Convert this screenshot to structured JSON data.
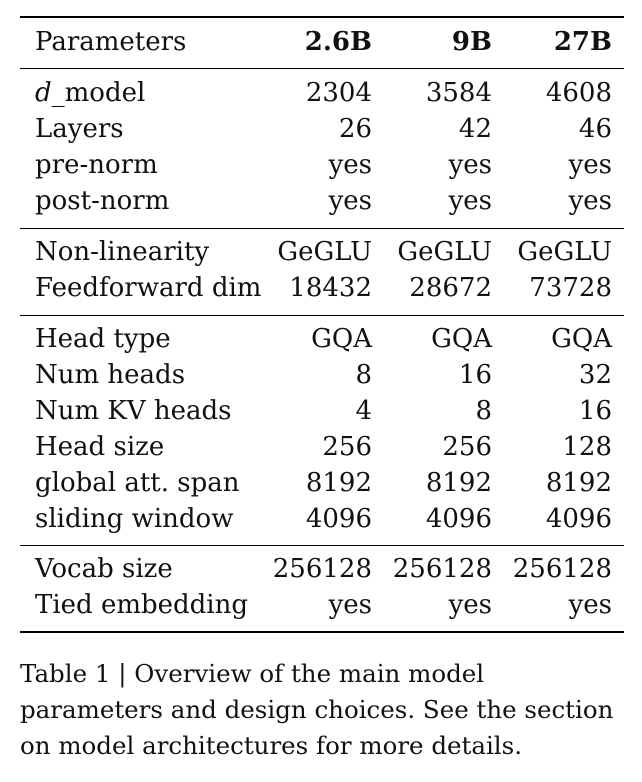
{
  "table": {
    "header": {
      "label": "Parameters",
      "cols": [
        "2.6B",
        "9B",
        "27B"
      ]
    },
    "groups": [
      [
        {
          "label_italic": "d",
          "label_rest": "_model",
          "values": [
            "2304",
            "3584",
            "4608"
          ]
        },
        {
          "label": "Layers",
          "values": [
            "26",
            "42",
            "46"
          ]
        },
        {
          "label": "pre-norm",
          "values": [
            "yes",
            "yes",
            "yes"
          ]
        },
        {
          "label": "post-norm",
          "values": [
            "yes",
            "yes",
            "yes"
          ]
        }
      ],
      [
        {
          "label": "Non-linearity",
          "values": [
            "GeGLU",
            "GeGLU",
            "GeGLU"
          ]
        },
        {
          "label": "Feedforward dim",
          "values": [
            "18432",
            "28672",
            "73728"
          ]
        }
      ],
      [
        {
          "label": "Head type",
          "values": [
            "GQA",
            "GQA",
            "GQA"
          ]
        },
        {
          "label": "Num heads",
          "values": [
            "8",
            "16",
            "32"
          ]
        },
        {
          "label": "Num KV heads",
          "values": [
            "4",
            "8",
            "16"
          ]
        },
        {
          "label": "Head size",
          "values": [
            "256",
            "256",
            "128"
          ]
        },
        {
          "label": "global att. span",
          "values": [
            "8192",
            "8192",
            "8192"
          ]
        },
        {
          "label": "sliding window",
          "values": [
            "4096",
            "4096",
            "4096"
          ]
        }
      ],
      [
        {
          "label": "Vocab size",
          "values": [
            "256128",
            "256128",
            "256128"
          ]
        },
        {
          "label": "Tied embedding",
          "values": [
            "yes",
            "yes",
            "yes"
          ]
        }
      ]
    ]
  },
  "caption": "Table 1 | Overview of the main model parameters and design choices.  See the section on model architectures for more details."
}
